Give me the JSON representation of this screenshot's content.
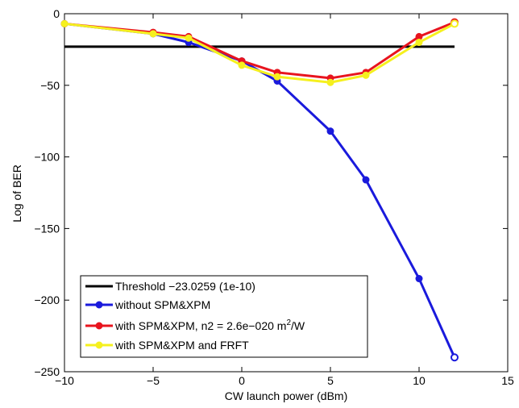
{
  "chart_data": {
    "type": "line",
    "title": "",
    "xlabel": "CW launch power (dBm)",
    "ylabel": "Log of BER",
    "xlim": [
      -10,
      15
    ],
    "ylim": [
      -250,
      0
    ],
    "xticks": [
      -10,
      -5,
      0,
      5,
      10,
      15
    ],
    "yticks": [
      0,
      -50,
      -100,
      -150,
      -200,
      -250
    ],
    "grid": false,
    "legend_position": "bottom-left",
    "threshold": {
      "name": "Threshold −23.0259 (1e-10)",
      "value": -23.0259,
      "x_range": [
        -10,
        12
      ],
      "color": "#000000"
    },
    "series": [
      {
        "name": "without SPM&XPM",
        "color": "#1a1adc",
        "x": [
          -10,
          -5,
          -3,
          0,
          2,
          5,
          7,
          10,
          12
        ],
        "y": [
          -7,
          -14,
          -20,
          -33,
          -47,
          -82,
          -116,
          -185,
          -240
        ]
      },
      {
        "name": "with SPM&XPM, n2 = 2.6e−020 m²/W",
        "name_main": "with SPM&XPM, n2 = 2.6e−020 m",
        "name_sup": "2",
        "name_tail": "/W",
        "color": "#e8141e",
        "x": [
          -10,
          -5,
          -3,
          0,
          2,
          5,
          7,
          10,
          12
        ],
        "y": [
          -7,
          -13,
          -16,
          -33,
          -41,
          -45,
          -41,
          -16,
          -6
        ]
      },
      {
        "name": "with SPM&XPM and FRFT",
        "color": "#f5f01e",
        "x": [
          -10,
          -5,
          -3,
          0,
          2,
          5,
          7,
          10,
          12
        ],
        "y": [
          -7,
          -14,
          -17,
          -36,
          -44,
          -48,
          -43,
          -20,
          -7
        ]
      }
    ]
  }
}
